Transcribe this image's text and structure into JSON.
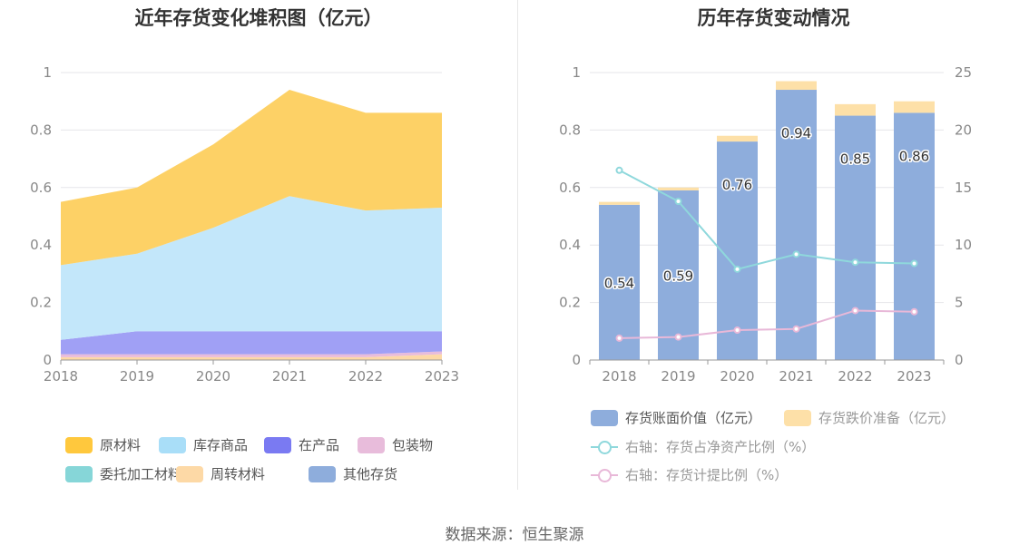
{
  "source_text": "数据来源：恒生聚源",
  "chart_data": [
    {
      "type": "area",
      "stacked": true,
      "title": "近年存货变化堆积图（亿元）",
      "categories": [
        "2018",
        "2019",
        "2020",
        "2021",
        "2022",
        "2023"
      ],
      "ylim": [
        0,
        1
      ],
      "yticks": [
        "0",
        "0.2",
        "0.4",
        "0.6",
        "0.8",
        "1"
      ],
      "grid": true,
      "legend_position": "bottom",
      "series": [
        {
          "name": "原材料",
          "color": "#fdd166",
          "values": [
            0.22,
            0.23,
            0.29,
            0.37,
            0.34,
            0.33
          ]
        },
        {
          "name": "库存商品",
          "color": "#c3e7fa",
          "values": [
            0.26,
            0.27,
            0.36,
            0.47,
            0.42,
            0.43
          ]
        },
        {
          "name": "在产品",
          "color": "#a0a0f5",
          "values": [
            0.05,
            0.08,
            0.08,
            0.08,
            0.08,
            0.07
          ]
        },
        {
          "name": "包装物",
          "color": "#e8bcdb",
          "values": [
            0.01,
            0.01,
            0.01,
            0.01,
            0.01,
            0.01
          ]
        },
        {
          "name": "委托加工材料",
          "color": "#86d6d8",
          "values": [
            0,
            0,
            0,
            0,
            0,
            0
          ]
        },
        {
          "name": "周转材料",
          "color": "#fdd9a6",
          "values": [
            0.01,
            0.01,
            0.01,
            0.01,
            0.01,
            0.02
          ]
        },
        {
          "name": "其他存货",
          "color": "#8eaddc",
          "values": [
            0,
            0,
            0,
            0,
            0,
            0
          ]
        }
      ],
      "legend_swatch_colors": [
        "#ffc83d",
        "#a9def8",
        "#7a7af2",
        "#e8bcdb",
        "#86d6d8",
        "#fdd9a6",
        "#8eaddc"
      ]
    },
    {
      "type": "bar",
      "title": "历年存货变动情况",
      "categories": [
        "2018",
        "2019",
        "2020",
        "2021",
        "2022",
        "2023"
      ],
      "ylim": [
        0,
        1
      ],
      "yticks": [
        "0",
        "0.2",
        "0.4",
        "0.6",
        "0.8",
        "1"
      ],
      "y2lim": [
        0,
        25
      ],
      "y2ticks": [
        "0",
        "5",
        "10",
        "15",
        "20",
        "25"
      ],
      "grid": true,
      "legend_position": "bottom",
      "series": [
        {
          "name": "存货账面价值（亿元）",
          "type": "bar",
          "stack": "inv",
          "color": "#8eaddc",
          "values": [
            0.54,
            0.59,
            0.76,
            0.94,
            0.85,
            0.86
          ],
          "labels": [
            "0.54",
            "0.59",
            "0.76",
            "0.94",
            "0.85",
            "0.86"
          ]
        },
        {
          "name": "存货跌价准备（亿元）",
          "type": "bar",
          "stack": "inv",
          "color": "#fde0a8",
          "values": [
            0.01,
            0.01,
            0.02,
            0.03,
            0.04,
            0.04
          ]
        },
        {
          "name": "右轴：存货占净资产比例（%）",
          "type": "line",
          "axis": "right",
          "color": "#8fd8dc",
          "values": [
            16.5,
            13.8,
            7.9,
            9.2,
            8.5,
            8.4
          ]
        },
        {
          "name": "右轴：存货计提比例（%）",
          "type": "line",
          "axis": "right",
          "color": "#e8b8d8",
          "values": [
            1.9,
            2.0,
            2.6,
            2.7,
            4.3,
            4.2
          ]
        }
      ]
    }
  ]
}
